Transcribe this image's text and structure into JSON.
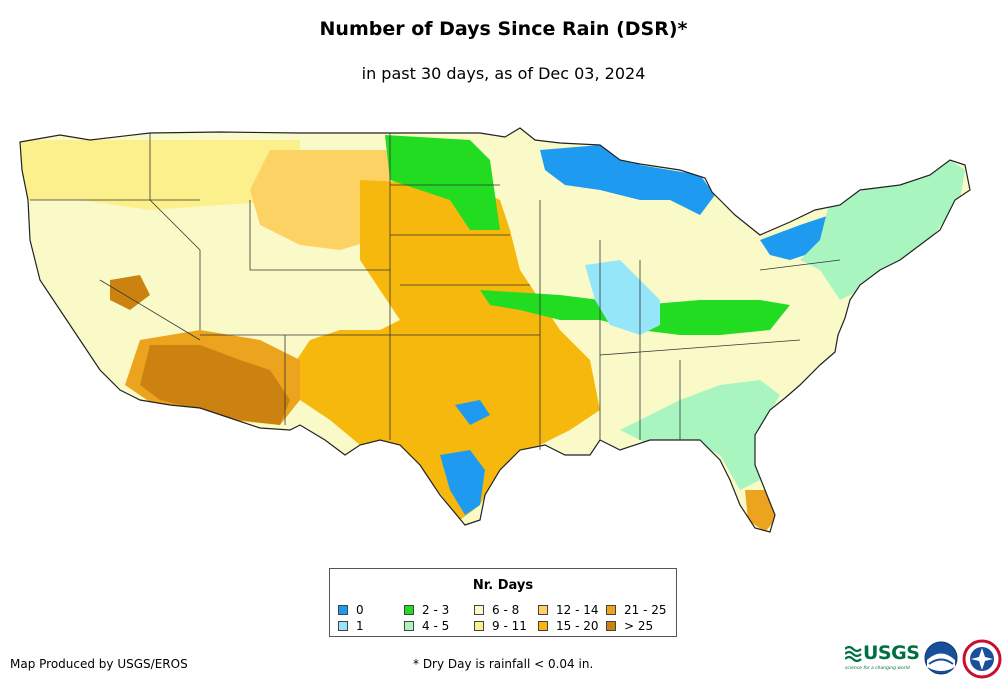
{
  "title": "Number of Days Since Rain (DSR)*",
  "subtitle": "in past 30 days, as of Dec 03, 2024",
  "legend": {
    "title": "Nr. Days",
    "items": [
      {
        "label": "0",
        "color": "#1e9bf0"
      },
      {
        "label": "1",
        "color": "#96e6fa"
      },
      {
        "label": "2 - 3",
        "color": "#22dc22"
      },
      {
        "label": "4 - 5",
        "color": "#a8f5c0"
      },
      {
        "label": "6 - 8",
        "color": "#fafac8"
      },
      {
        "label": "9 - 11",
        "color": "#fcf08c"
      },
      {
        "label": "12 - 14",
        "color": "#fcd264"
      },
      {
        "label": "15 - 20",
        "color": "#f6b80c"
      },
      {
        "label": "21 - 25",
        "color": "#eca31e"
      },
      {
        "label": "> 25",
        "color": "#cc8210"
      }
    ]
  },
  "footer": {
    "credit": "Map Produced by USGS/EROS",
    "footnote": "* Dry Day is rainfall < 0.04 in."
  },
  "logos": {
    "usgs": {
      "word": "USGS",
      "tagline": "science for a changing world",
      "color": "#006f41"
    },
    "noaa": "noaa-logo",
    "nws": "nws-logo"
  }
}
